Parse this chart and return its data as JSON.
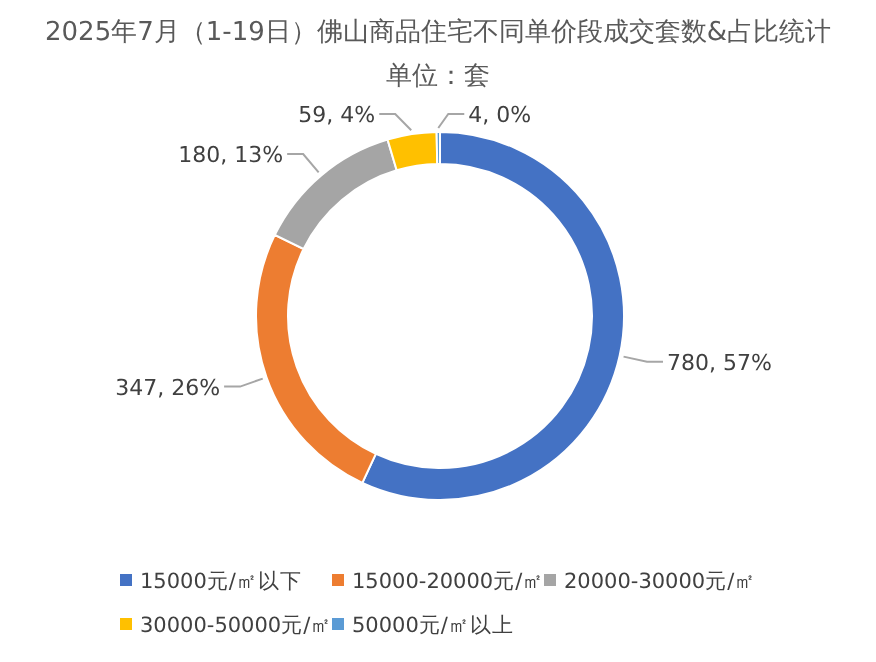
{
  "chart_data": {
    "type": "donut",
    "title": "2025年7月（1-19日）佛山商品住宅不同单价段成交套数&占比统计",
    "subtitle": "单位：套",
    "categories": [
      "15000元/㎡以下",
      "15000-20000元/㎡",
      "20000-30000元/㎡",
      "30000-50000元/㎡",
      "50000元/㎡以上"
    ],
    "values": [
      780,
      347,
      180,
      59,
      4
    ],
    "value_labels": [
      "780, 57%",
      "347, 26%",
      "180, 13%",
      "59, 4%",
      "4, 0%"
    ],
    "colors": [
      "#4472c4",
      "#ed7d31",
      "#a5a5a5",
      "#ffc000",
      "#5b9bd5"
    ],
    "legend": "bottom"
  }
}
